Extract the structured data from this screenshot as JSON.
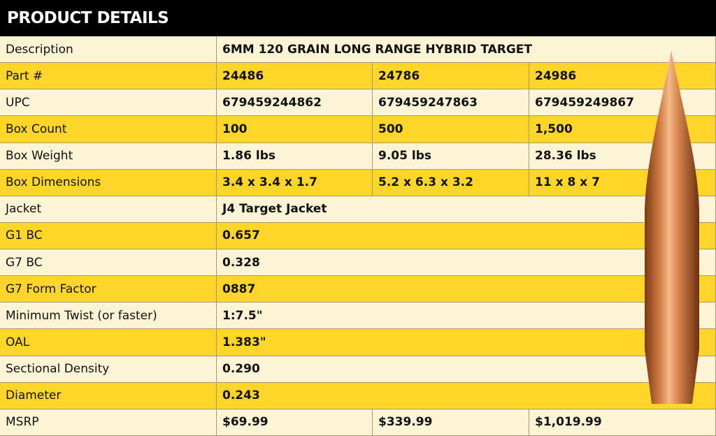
{
  "header": {
    "title": "PRODUCT DETAILS"
  },
  "table": {
    "rows": [
      [
        "Description",
        "6MM 120 GRAIN LONG RANGE HYBRID TARGET"
      ],
      [
        "Part #",
        "24486",
        "24786",
        "24986"
      ],
      [
        "UPC",
        "679459244862",
        "679459247863",
        "679459249867"
      ],
      [
        "Box Count",
        "100",
        "500",
        "1,500"
      ],
      [
        "Box Weight",
        "1.86 lbs",
        "9.05 lbs",
        "28.36 lbs"
      ],
      [
        "Box Dimensions",
        "3.4 x 3.4 x 1.7",
        "5.2 x 6.3 x 3.2",
        "11 x 8 x 7"
      ],
      [
        "Jacket",
        "J4 Target Jacket"
      ],
      [
        "G1 BC",
        "0.657"
      ],
      [
        "G7 BC",
        "0.328"
      ],
      [
        "G7 Form Factor",
        "0887"
      ],
      [
        "Minimum Twist (or faster)",
        "1:7.5\""
      ],
      [
        "OAL",
        "1.383\""
      ],
      [
        "Sectional Density",
        "0.290"
      ],
      [
        "Diameter",
        "0.243"
      ],
      [
        "MSRP",
        "$69.99",
        "$339.99",
        "$1,019.99"
      ]
    ]
  }
}
